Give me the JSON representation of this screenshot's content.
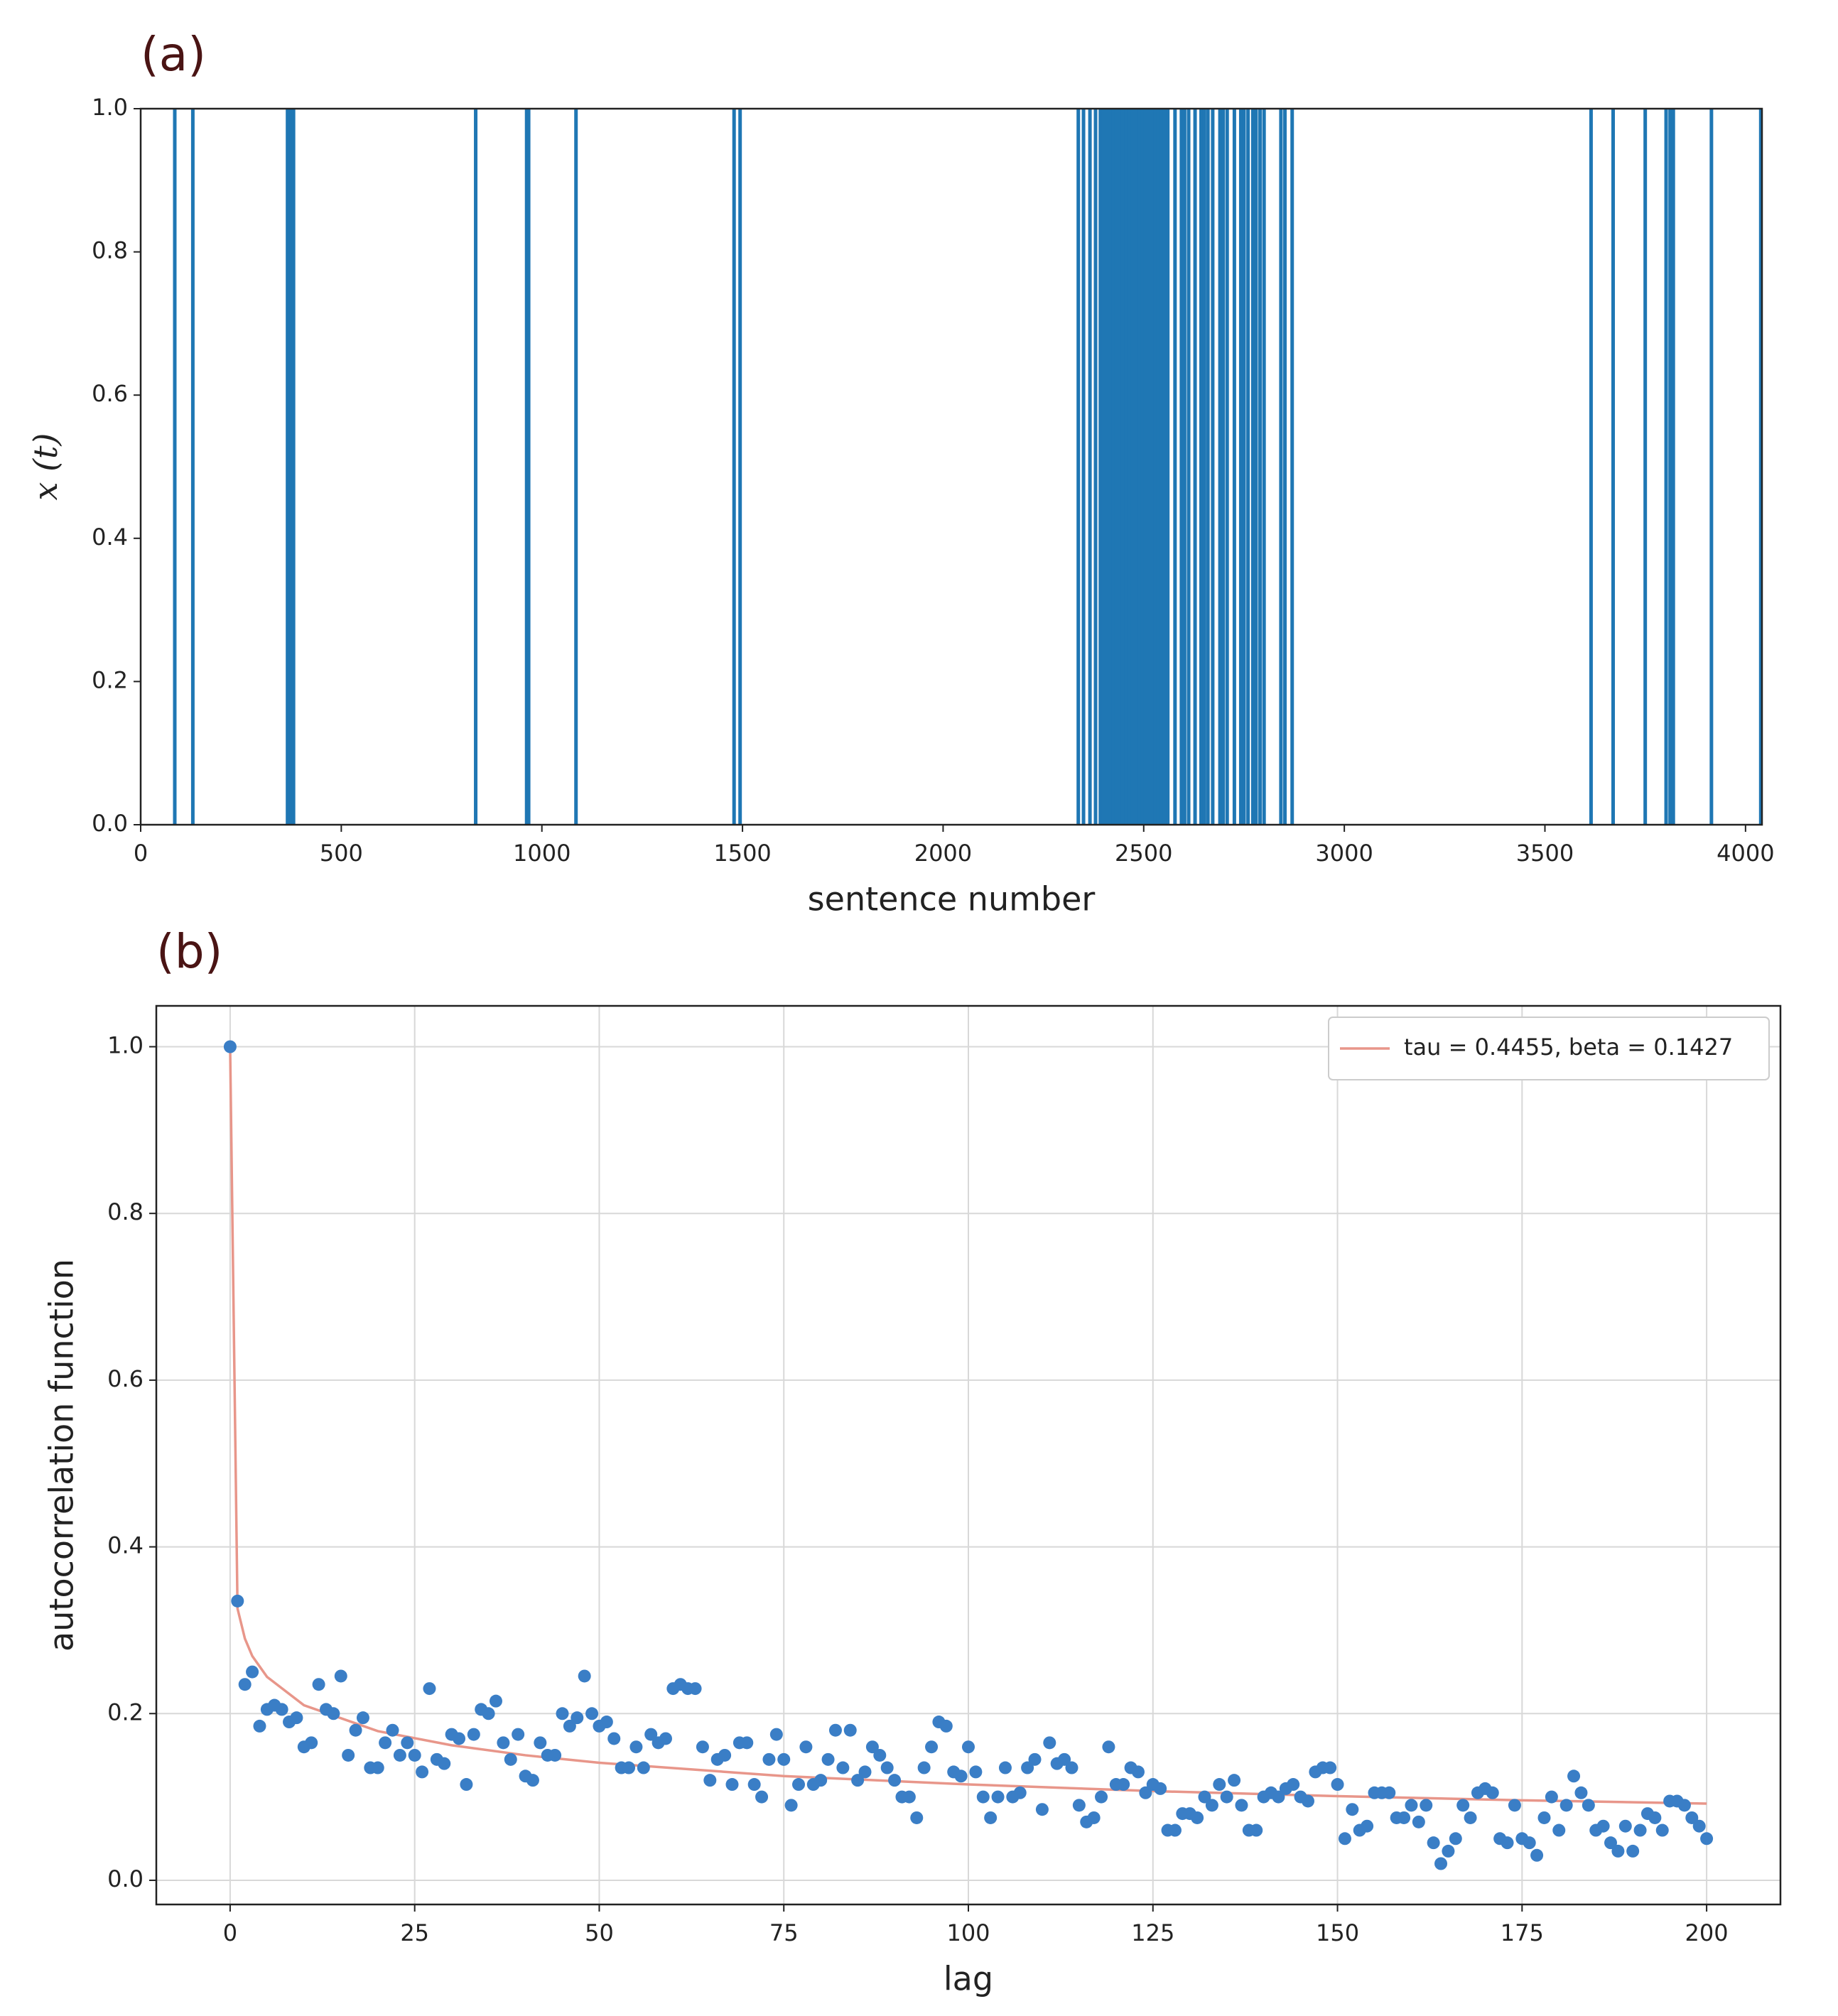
{
  "chart_data": [
    {
      "type": "spike",
      "panel_label": "(a)",
      "x_label": "sentence number",
      "y_label": "x (t)",
      "color": "#1f77b4",
      "xlim": [
        0,
        4041
      ],
      "ylim": [
        0,
        1
      ],
      "grid": false,
      "xticks": [
        0,
        500,
        1000,
        1500,
        2000,
        2500,
        3000,
        3500,
        4000
      ],
      "yticks": [
        {
          "value": 0,
          "label": "0.0"
        },
        {
          "value": 0.2,
          "label": "0.2"
        },
        {
          "value": 0.4,
          "label": "0.4"
        },
        {
          "value": 0.6,
          "label": "0.6"
        },
        {
          "value": 0.8,
          "label": "0.8"
        },
        {
          "value": 1,
          "label": "1.0"
        }
      ],
      "x": [
        85,
        130,
        366,
        371,
        376,
        381,
        835,
        962,
        967,
        1085,
        1479,
        1494,
        2337,
        2350,
        2366,
        2380,
        2392,
        2400,
        2408,
        2416,
        2424,
        2432,
        2440,
        2448,
        2456,
        2464,
        2472,
        2480,
        2488,
        2496,
        2504,
        2512,
        2520,
        2528,
        2536,
        2544,
        2552,
        2560,
        2578,
        2594,
        2602,
        2612,
        2628,
        2643,
        2651,
        2660,
        2672,
        2690,
        2698,
        2708,
        2726,
        2742,
        2750,
        2760,
        2772,
        2780,
        2790,
        2800,
        2842,
        2852,
        2870,
        3615,
        3670,
        3750,
        3802,
        3812,
        3820,
        3915,
        4038
      ],
      "values": [
        1,
        1,
        1,
        1,
        1,
        1,
        1,
        1,
        1,
        1,
        1,
        1,
        1,
        1,
        1,
        1,
        1,
        1,
        1,
        1,
        1,
        1,
        1,
        1,
        1,
        1,
        1,
        1,
        1,
        1,
        1,
        1,
        1,
        1,
        1,
        1,
        1,
        1,
        1,
        1,
        1,
        1,
        1,
        1,
        1,
        1,
        1,
        1,
        1,
        1,
        1,
        1,
        1,
        1,
        1,
        1,
        1,
        1,
        1,
        1,
        1,
        1,
        1,
        1,
        1,
        1,
        1,
        1,
        1
      ]
    },
    {
      "type": "scatter",
      "panel_label": "(b)",
      "x_label": "lag",
      "y_label": "autocorrelation function",
      "xlim": [
        -10,
        210
      ],
      "ylim": [
        -0.029,
        1.049
      ],
      "grid": true,
      "legend": "upper right",
      "xticks": [
        0,
        25,
        50,
        75,
        100,
        125,
        150,
        175,
        200
      ],
      "yticks": [
        {
          "value": 0,
          "label": "0.0"
        },
        {
          "value": 0.2,
          "label": "0.2"
        },
        {
          "value": 0.4,
          "label": "0.4"
        },
        {
          "value": 0.6,
          "label": "0.6"
        },
        {
          "value": 0.8,
          "label": "0.8"
        },
        {
          "value": 1,
          "label": "1.0"
        }
      ],
      "points": {
        "color": "#3a7ec6",
        "x": [
          0,
          1,
          2,
          3,
          4,
          5,
          6,
          7,
          8,
          9,
          10,
          11,
          12,
          13,
          14,
          15,
          16,
          17,
          18,
          19,
          20,
          21,
          22,
          23,
          24,
          25,
          26,
          27,
          28,
          29,
          30,
          31,
          32,
          33,
          34,
          35,
          36,
          37,
          38,
          39,
          40,
          41,
          42,
          43,
          44,
          45,
          46,
          47,
          48,
          49,
          50,
          51,
          52,
          53,
          54,
          55,
          56,
          57,
          58,
          59,
          60,
          61,
          62,
          63,
          64,
          65,
          66,
          67,
          68,
          69,
          70,
          71,
          72,
          73,
          74,
          75,
          76,
          77,
          78,
          79,
          80,
          81,
          82,
          83,
          84,
          85,
          86,
          87,
          88,
          89,
          90,
          91,
          92,
          93,
          94,
          95,
          96,
          97,
          98,
          99,
          100,
          101,
          102,
          103,
          104,
          105,
          106,
          107,
          108,
          109,
          110,
          111,
          112,
          113,
          114,
          115,
          116,
          117,
          118,
          119,
          120,
          121,
          122,
          123,
          124,
          125,
          126,
          127,
          128,
          129,
          130,
          131,
          132,
          133,
          134,
          135,
          136,
          137,
          138,
          139,
          140,
          141,
          142,
          143,
          144,
          145,
          146,
          147,
          148,
          149,
          150,
          151,
          152,
          153,
          154,
          155,
          156,
          157,
          158,
          159,
          160,
          161,
          162,
          163,
          164,
          165,
          166,
          167,
          168,
          169,
          170,
          171,
          172,
          173,
          174,
          175,
          176,
          177,
          178,
          179,
          180,
          181,
          182,
          183,
          184,
          185,
          186,
          187,
          188,
          189,
          190,
          191,
          192,
          193,
          194,
          195,
          196,
          197,
          198,
          199,
          200
        ],
        "values": [
          1.0,
          0.335,
          0.235,
          0.25,
          0.185,
          0.205,
          0.21,
          0.205,
          0.19,
          0.195,
          0.16,
          0.165,
          0.235,
          0.205,
          0.2,
          0.245,
          0.15,
          0.18,
          0.195,
          0.135,
          0.135,
          0.165,
          0.18,
          0.15,
          0.165,
          0.15,
          0.13,
          0.23,
          0.145,
          0.14,
          0.175,
          0.17,
          0.115,
          0.175,
          0.205,
          0.2,
          0.215,
          0.165,
          0.145,
          0.175,
          0.125,
          0.12,
          0.165,
          0.15,
          0.15,
          0.2,
          0.185,
          0.195,
          0.245,
          0.2,
          0.185,
          0.19,
          0.17,
          0.135,
          0.135,
          0.16,
          0.135,
          0.175,
          0.165,
          0.17,
          0.23,
          0.235,
          0.23,
          0.23,
          0.16,
          0.12,
          0.145,
          0.15,
          0.115,
          0.165,
          0.165,
          0.115,
          0.1,
          0.145,
          0.175,
          0.145,
          0.09,
          0.115,
          0.16,
          0.115,
          0.12,
          0.145,
          0.18,
          0.135,
          0.18,
          0.12,
          0.13,
          0.16,
          0.15,
          0.135,
          0.12,
          0.1,
          0.1,
          0.075,
          0.135,
          0.16,
          0.19,
          0.185,
          0.13,
          0.125,
          0.16,
          0.13,
          0.1,
          0.075,
          0.1,
          0.135,
          0.1,
          0.105,
          0.135,
          0.145,
          0.085,
          0.165,
          0.14,
          0.145,
          0.135,
          0.09,
          0.07,
          0.075,
          0.1,
          0.16,
          0.115,
          0.115,
          0.135,
          0.13,
          0.105,
          0.115,
          0.11,
          0.06,
          0.06,
          0.08,
          0.08,
          0.075,
          0.1,
          0.09,
          0.115,
          0.1,
          0.12,
          0.09,
          0.06,
          0.06,
          0.1,
          0.105,
          0.1,
          0.11,
          0.115,
          0.1,
          0.095,
          0.13,
          0.135,
          0.135,
          0.115,
          0.05,
          0.085,
          0.06,
          0.065,
          0.105,
          0.105,
          0.105,
          0.075,
          0.075,
          0.09,
          0.07,
          0.09,
          0.045,
          0.02,
          0.035,
          0.05,
          0.09,
          0.075,
          0.105,
          0.11,
          0.105,
          0.05,
          0.045,
          0.09,
          0.05,
          0.045,
          0.03,
          0.075,
          0.1,
          0.06,
          0.09,
          0.125,
          0.105,
          0.09,
          0.06,
          0.065,
          0.045,
          0.035,
          0.065,
          0.035,
          0.06,
          0.08,
          0.075,
          0.06,
          0.095,
          0.095,
          0.09,
          0.075,
          0.065,
          0.05
        ]
      },
      "series": [
        {
          "name": "tau = 0.4455, beta = 0.1427",
          "color": "#e8968a",
          "x": [
            0,
            1,
            2,
            3,
            5,
            10,
            20,
            30,
            40,
            50,
            75,
            100,
            125,
            150,
            175,
            200
          ],
          "values": [
            1,
            0.326,
            0.29,
            0.269,
            0.244,
            0.21,
            0.179,
            0.162,
            0.15,
            0.141,
            0.125,
            0.115,
            0.107,
            0.101,
            0.096,
            0.092
          ]
        }
      ]
    }
  ]
}
